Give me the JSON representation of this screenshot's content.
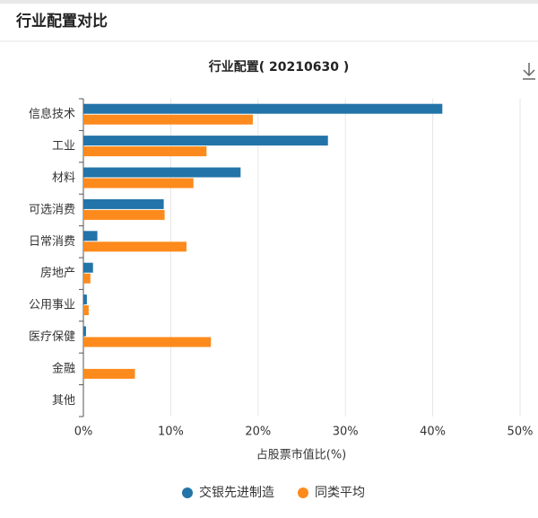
{
  "header": {
    "title": "行业配置对比"
  },
  "chart_data": {
    "type": "bar",
    "orientation": "horizontal",
    "title": "行业配置( 20210630 )",
    "x_label": "占股票市值比(%)",
    "categories": [
      "信息技术",
      "工业",
      "材料",
      "可选消费",
      "日常消费",
      "房地产",
      "公用事业",
      "医疗保健",
      "金融",
      "其他"
    ],
    "series": [
      {
        "name": "交银先进制造",
        "color": "#2374a8",
        "values": [
          41.1,
          28.0,
          18.0,
          9.2,
          1.6,
          1.1,
          0.4,
          0.3,
          0,
          0
        ]
      },
      {
        "name": "同类平均",
        "color": "#fd8a1c",
        "values": [
          19.4,
          14.1,
          12.6,
          9.3,
          11.8,
          0.8,
          0.6,
          14.6,
          5.9,
          0
        ]
      }
    ],
    "xlim": [
      0,
      50
    ],
    "xticks": [
      {
        "value": 0,
        "label": "0%"
      },
      {
        "value": 10,
        "label": "10%"
      },
      {
        "value": 20,
        "label": "20%"
      },
      {
        "value": 30,
        "label": "30%"
      },
      {
        "value": 40,
        "label": "40%"
      },
      {
        "value": 50,
        "label": "50%"
      }
    ],
    "grid": true,
    "legend": "bottom"
  }
}
